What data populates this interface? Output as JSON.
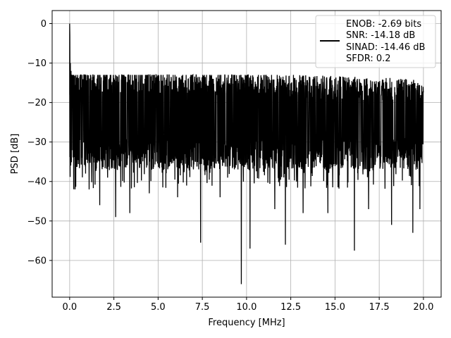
{
  "chart_data": {
    "type": "line",
    "title": "",
    "xlabel": "Frequency [MHz]",
    "ylabel": "PSD [dB]",
    "xlim": [
      -0.99,
      21.0
    ],
    "ylim": [
      -69.3,
      3.3
    ],
    "x_ticks": [
      0.0,
      2.5,
      5.0,
      7.5,
      10.0,
      12.5,
      15.0,
      17.5,
      20.0
    ],
    "x_tick_labels": [
      "0.0",
      "2.5",
      "5.0",
      "7.5",
      "10.0",
      "12.5",
      "15.0",
      "17.5",
      "20.0"
    ],
    "y_ticks": [
      0,
      -10,
      -20,
      -30,
      -40,
      -50,
      -60
    ],
    "y_tick_labels": [
      "0",
      "−10",
      "−20",
      "−30",
      "−40",
      "−50",
      "−60"
    ],
    "grid": true,
    "legend_position": "top-right",
    "series": [
      {
        "color": "#000000",
        "noise_floor_db": -25,
        "noise_band_db": [
          -33,
          -15
        ],
        "dc_peak": {
          "x": 0.0,
          "y": 0
        },
        "deep_notches": [
          {
            "x": 0.3,
            "y": -42
          },
          {
            "x": 0.9,
            "y": -38
          },
          {
            "x": 1.1,
            "y": -42
          },
          {
            "x": 1.7,
            "y": -46
          },
          {
            "x": 2.6,
            "y": -49
          },
          {
            "x": 3.4,
            "y": -48
          },
          {
            "x": 4.5,
            "y": -43
          },
          {
            "x": 6.1,
            "y": -44
          },
          {
            "x": 7.4,
            "y": -55.5
          },
          {
            "x": 8.5,
            "y": -44
          },
          {
            "x": 9.7,
            "y": -66
          },
          {
            "x": 10.2,
            "y": -57
          },
          {
            "x": 11.6,
            "y": -47
          },
          {
            "x": 12.2,
            "y": -56
          },
          {
            "x": 13.2,
            "y": -48
          },
          {
            "x": 14.6,
            "y": -48
          },
          {
            "x": 16.1,
            "y": -57.5
          },
          {
            "x": 16.9,
            "y": -47
          },
          {
            "x": 18.2,
            "y": -51
          },
          {
            "x": 19.4,
            "y": -53
          },
          {
            "x": 19.8,
            "y": -47
          }
        ]
      }
    ],
    "legend_lines": [
      "ENOB: -2.69 bits",
      "SNR: -14.18 dB",
      "SINAD: -14.46 dB",
      "SFDR: 0.2"
    ]
  }
}
